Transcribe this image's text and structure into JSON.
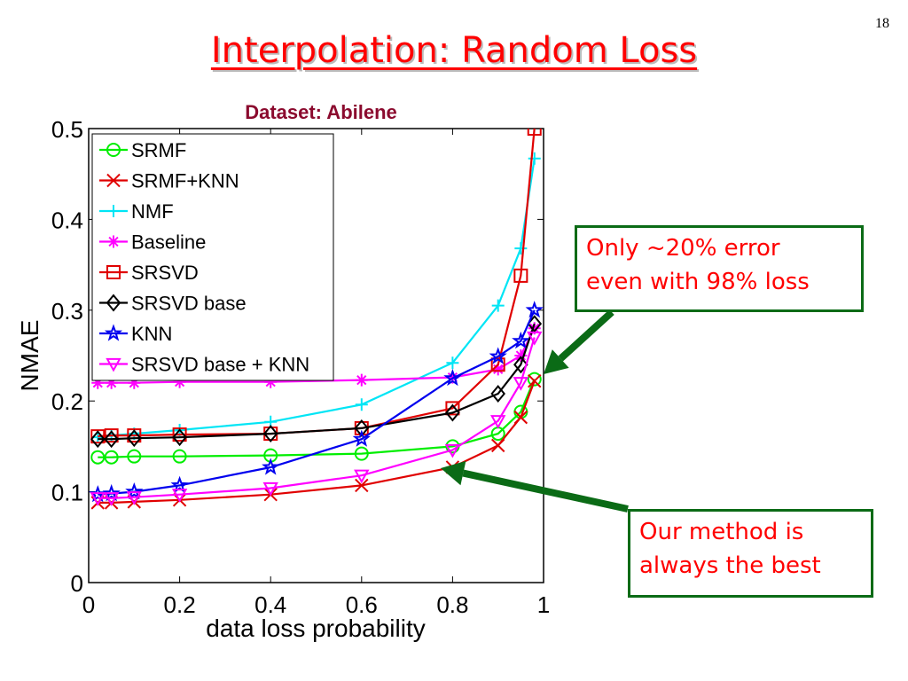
{
  "slide": {
    "number": "18",
    "title": "Interpolation: Random Loss"
  },
  "colors": {
    "title": "#ff0000",
    "dataset": "#8b0a2e",
    "callout_border": "#0b6b16",
    "callout_text": "#ff0000",
    "arrow": "#0b6b16"
  },
  "callouts": [
    {
      "lines": [
        "Only ~20% error",
        "even with 98% loss"
      ]
    },
    {
      "lines": [
        "Our method is",
        "always the best"
      ]
    }
  ],
  "chart_data": {
    "type": "line",
    "title": "Dataset: Abilene",
    "xlabel": "data loss probability",
    "ylabel": "NMAE",
    "xlim": [
      0,
      1
    ],
    "ylim": [
      0,
      0.5
    ],
    "xticks": [
      "0",
      "0.2",
      "0.4",
      "0.6",
      "0.8",
      "1"
    ],
    "yticks": [
      "0",
      "0.1",
      "0.2",
      "0.3",
      "0.4",
      "0.5"
    ],
    "legend_position": "top-left",
    "grid": false,
    "series": [
      {
        "name": "SRMF",
        "color": "#00ee00",
        "marker": "circle",
        "x": [
          0.02,
          0.05,
          0.1,
          0.2,
          0.4,
          0.6,
          0.8,
          0.9,
          0.95,
          0.98
        ],
        "y": [
          0.138,
          0.138,
          0.139,
          0.139,
          0.14,
          0.142,
          0.15,
          0.164,
          0.188,
          0.224
        ]
      },
      {
        "name": "SRMF+KNN",
        "color": "#e00000",
        "marker": "x",
        "x": [
          0.02,
          0.05,
          0.1,
          0.2,
          0.4,
          0.6,
          0.8,
          0.9,
          0.95,
          0.98
        ],
        "y": [
          0.088,
          0.088,
          0.089,
          0.091,
          0.097,
          0.107,
          0.127,
          0.151,
          0.182,
          0.222
        ]
      },
      {
        "name": "NMF",
        "color": "#00e5f5",
        "marker": "plus",
        "x": [
          0.02,
          0.05,
          0.1,
          0.2,
          0.4,
          0.6,
          0.8,
          0.9,
          0.95,
          0.98
        ],
        "y": [
          0.16,
          0.162,
          0.164,
          0.168,
          0.177,
          0.196,
          0.242,
          0.305,
          0.368,
          0.467
        ]
      },
      {
        "name": "Baseline",
        "color": "#ff00ff",
        "marker": "asterisk",
        "x": [
          0.02,
          0.05,
          0.1,
          0.2,
          0.4,
          0.6,
          0.8,
          0.9,
          0.95,
          0.98
        ],
        "y": [
          0.22,
          0.22,
          0.22,
          0.221,
          0.221,
          0.223,
          0.226,
          0.235,
          0.25,
          0.28
        ]
      },
      {
        "name": "SRSVD",
        "color": "#e00000",
        "marker": "square",
        "x": [
          0.02,
          0.05,
          0.1,
          0.2,
          0.4,
          0.6,
          0.8,
          0.9,
          0.95,
          0.98
        ],
        "y": [
          0.161,
          0.162,
          0.162,
          0.163,
          0.164,
          0.17,
          0.192,
          0.24,
          0.338,
          0.5
        ]
      },
      {
        "name": "SRSVD base",
        "color": "#000000",
        "marker": "diamond",
        "x": [
          0.02,
          0.05,
          0.1,
          0.2,
          0.4,
          0.6,
          0.8,
          0.9,
          0.95,
          0.98
        ],
        "y": [
          0.158,
          0.158,
          0.159,
          0.16,
          0.164,
          0.17,
          0.187,
          0.208,
          0.24,
          0.285
        ]
      },
      {
        "name": "KNN",
        "color": "#0000ee",
        "marker": "star",
        "x": [
          0.02,
          0.05,
          0.1,
          0.2,
          0.4,
          0.6,
          0.8,
          0.9,
          0.95,
          0.98
        ],
        "y": [
          0.097,
          0.098,
          0.1,
          0.107,
          0.127,
          0.158,
          0.225,
          0.249,
          0.266,
          0.3
        ]
      },
      {
        "name": "SRSVD base + KNN",
        "color": "#ff00ff",
        "marker": "triangle-down",
        "x": [
          0.02,
          0.05,
          0.1,
          0.2,
          0.4,
          0.6,
          0.8,
          0.9,
          0.95,
          0.98
        ],
        "y": [
          0.093,
          0.093,
          0.094,
          0.097,
          0.104,
          0.118,
          0.146,
          0.178,
          0.22,
          0.27
        ]
      }
    ]
  }
}
